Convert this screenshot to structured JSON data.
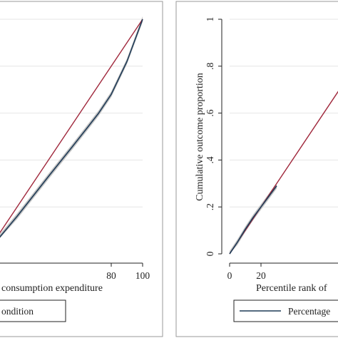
{
  "colors": {
    "background": "#ffffff",
    "panel_border": "#999999",
    "grid": "#e6e6e6",
    "axis": "#222222",
    "equality_line": "#a0283c",
    "curve": "#1f3b57",
    "ci_band": "#b8b8b8"
  },
  "chart_data": [
    {
      "type": "line",
      "title": "",
      "xlabel": "consumption expenditure",
      "ylabel": "",
      "xlim": [
        0,
        100
      ],
      "ylim": [
        0,
        1
      ],
      "grid": true,
      "x_ticks": [
        {
          "value": 80,
          "label": "80"
        },
        {
          "value": 100,
          "label": "100"
        }
      ],
      "y_ticks": [
        {
          "value": 0.2,
          "label": ""
        },
        {
          "value": 0.4,
          "label": ""
        },
        {
          "value": 0.6,
          "label": ""
        },
        {
          "value": 0.8,
          "label": ""
        },
        {
          "value": 1.0,
          "label": ""
        }
      ],
      "series": [
        {
          "role": "equality",
          "color": "#a0283c",
          "x": [
            0,
            100
          ],
          "y": [
            0,
            1
          ]
        },
        {
          "role": "concentration",
          "color": "#1f3b57",
          "x": [
            0,
            20,
            40,
            55,
            65,
            72,
            80,
            90,
            100
          ],
          "y": [
            0,
            0.16,
            0.33,
            0.455,
            0.54,
            0.6,
            0.68,
            0.82,
            1.0
          ],
          "ci_halfwidth": 0.012
        }
      ],
      "legend": {
        "position": "bottom",
        "entries": [
          {
            "label": "ondition",
            "color": "#1f3b57"
          }
        ]
      }
    },
    {
      "type": "line",
      "title": "",
      "xlabel": "Percentile rank of",
      "ylabel": "Cumulative outcome proportion",
      "xlim": [
        0,
        100
      ],
      "ylim": [
        0,
        1
      ],
      "grid": true,
      "x_ticks": [
        {
          "value": 0,
          "label": "0"
        },
        {
          "value": 20,
          "label": "20"
        }
      ],
      "y_ticks": [
        {
          "value": 0,
          "label": "0"
        },
        {
          "value": 0.2,
          "label": ".2"
        },
        {
          "value": 0.4,
          "label": ".4"
        },
        {
          "value": 0.6,
          "label": ".6"
        },
        {
          "value": 0.8,
          "label": ".8"
        },
        {
          "value": 1.0,
          "label": "1"
        }
      ],
      "series": [
        {
          "role": "equality",
          "color": "#a0283c",
          "x": [
            0,
            100
          ],
          "y": [
            0,
            1
          ]
        },
        {
          "role": "concentration",
          "color": "#1f3b57",
          "x": [
            0,
            5,
            10,
            15,
            20,
            25,
            30
          ],
          "y": [
            0,
            0.05,
            0.105,
            0.155,
            0.2,
            0.245,
            0.29
          ],
          "ci_halfwidth": 0.012
        }
      ],
      "legend": {
        "position": "bottom",
        "entries": [
          {
            "label": "Percentage",
            "color": "#1f3b57"
          }
        ]
      }
    }
  ]
}
